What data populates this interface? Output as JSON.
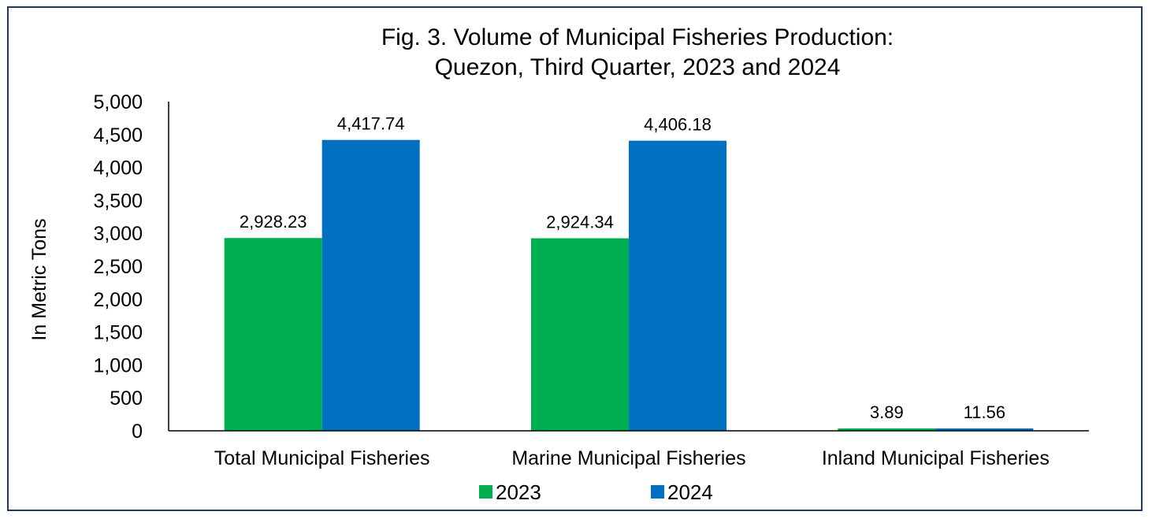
{
  "chart_data": {
    "type": "bar",
    "title_lines": [
      "Fig. 3. Volume of Municipal Fisheries  Production:",
      "Quezon, Third Quarter, 2023 and 2024"
    ],
    "xlabel": "",
    "ylabel": "In Metric Tons",
    "categories": [
      "Total Municipal Fisheries",
      "Marine Municipal Fisheries",
      "Inland Municipal Fisheries"
    ],
    "series": [
      {
        "name": "2023",
        "color": "#00b050",
        "values": [
          2928.23,
          2924.34,
          3.89
        ],
        "labels": [
          "2,928.23",
          "2,924.34",
          "3.89"
        ]
      },
      {
        "name": "2024",
        "color": "#0070c0",
        "values": [
          4417.74,
          4406.18,
          11.56
        ],
        "labels": [
          "4,417.74",
          "4,406.18",
          "11.56"
        ]
      }
    ],
    "ylim": [
      0,
      5000
    ],
    "yticks": [
      0,
      500,
      1000,
      1500,
      2000,
      2500,
      3000,
      3500,
      4000,
      4500,
      5000
    ],
    "ytick_labels": [
      "0",
      "500",
      "1,000",
      "1,500",
      "2,000",
      "2,500",
      "3,000",
      "3,500",
      "4,000",
      "4,500",
      "5,000"
    ],
    "grid": false,
    "legend_position": "bottom",
    "frame_color": "#1f3864"
  }
}
